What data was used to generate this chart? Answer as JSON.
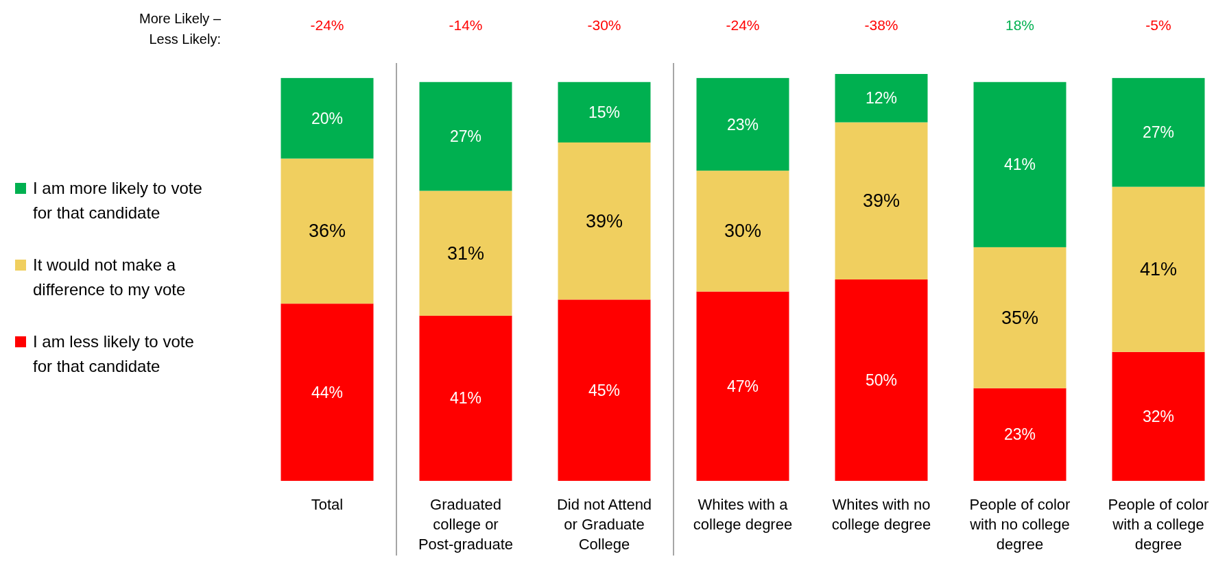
{
  "chart_data": {
    "type": "bar",
    "stacked": true,
    "legend": "left",
    "categories": [
      "Total",
      "Graduated college or Post-graduate",
      "Did not Attend or Graduate College",
      "Whites with a college degree",
      "Whites with no college degree",
      "People of color with no college degree",
      "People of color with a college degree"
    ],
    "series": [
      {
        "name": "I am less likely to vote for that candidate",
        "color": "#ff0000",
        "values": [
          44,
          41,
          45,
          47,
          50,
          23,
          32
        ],
        "value_labels": [
          "44%",
          "41%",
          "45%",
          "47%",
          "50%",
          "23%",
          "32%"
        ]
      },
      {
        "name": "It would not make a difference to my vote",
        "color": "#f0cf5f",
        "values": [
          36,
          31,
          39,
          30,
          39,
          35,
          41
        ],
        "value_labels": [
          "36%",
          "31%",
          "39%",
          "30%",
          "39%",
          "35%",
          "41%"
        ]
      },
      {
        "name": "I am more likely to vote for that candidate",
        "color": "#00b050",
        "values": [
          20,
          27,
          15,
          23,
          12,
          41,
          27
        ],
        "value_labels": [
          "20%",
          "27%",
          "15%",
          "23%",
          "12%",
          "41%",
          "27%"
        ]
      }
    ],
    "annotations": [
      "More Likely – Less Likely:",
      "-24%",
      "-14%",
      "-30%",
      "-24%",
      "-38%",
      "18%",
      "-5%"
    ]
  }
}
